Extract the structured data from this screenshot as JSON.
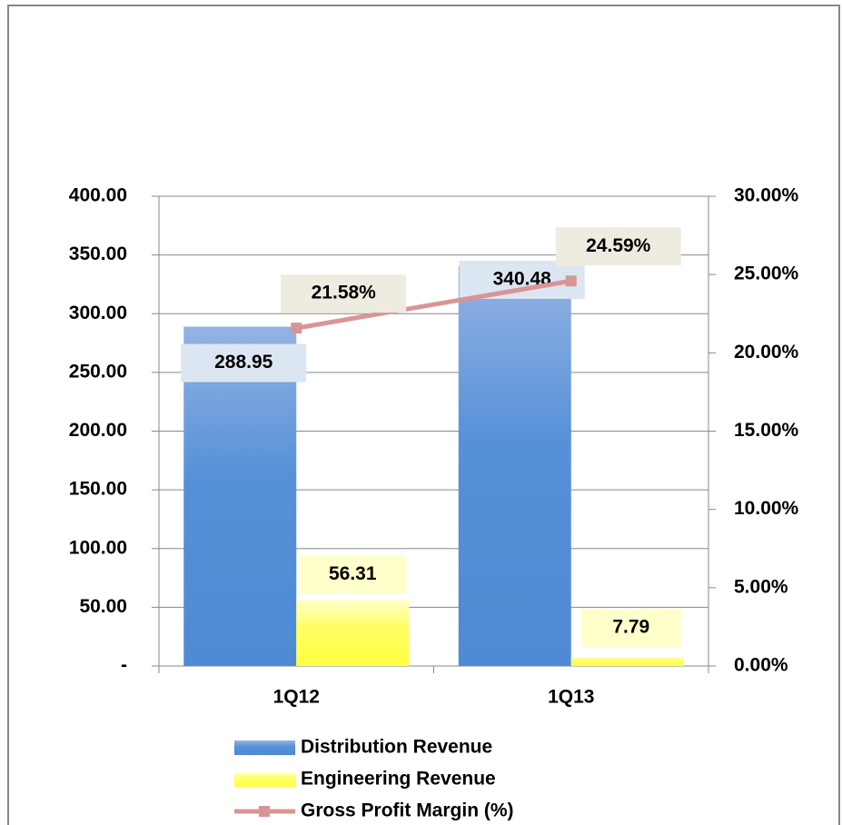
{
  "chart_data": {
    "type": "bar",
    "categories": [
      "1Q12",
      "1Q13"
    ],
    "series": [
      {
        "name": "Distribution Revenue",
        "color": "#5590d8",
        "values": [
          288.95,
          340.48
        ]
      },
      {
        "name": "Engineering Revenue",
        "color": "#ffff40",
        "values": [
          56.31,
          7.79
        ]
      },
      {
        "name": "Gross Profit Margin (%)",
        "type": "line",
        "axis": "y2",
        "color": "#d99594",
        "values": [
          21.58,
          24.59
        ],
        "value_labels": [
          "21.58%",
          "24.59%"
        ]
      }
    ],
    "ylim": [
      0,
      400
    ],
    "yticks": [
      {
        "value": 0,
        "label": "-"
      },
      {
        "value": 50,
        "label": "50.00"
      },
      {
        "value": 100,
        "label": "100.00"
      },
      {
        "value": 150,
        "label": "150.00"
      },
      {
        "value": 200,
        "label": "200.00"
      },
      {
        "value": 250,
        "label": "250.00"
      },
      {
        "value": 300,
        "label": "300.00"
      },
      {
        "value": 350,
        "label": "350.00"
      },
      {
        "value": 400,
        "label": "400.00"
      }
    ],
    "y2lim": [
      0,
      30
    ],
    "y2ticks": [
      {
        "value": 0,
        "label": "0.00%"
      },
      {
        "value": 5,
        "label": "5.00%"
      },
      {
        "value": 10,
        "label": "10.00%"
      },
      {
        "value": 15,
        "label": "15.00%"
      },
      {
        "value": 20,
        "label": "20.00%"
      },
      {
        "value": 25,
        "label": "25.00%"
      },
      {
        "value": 30,
        "label": "30.00%"
      }
    ],
    "grid": true,
    "legend": "bottom"
  }
}
